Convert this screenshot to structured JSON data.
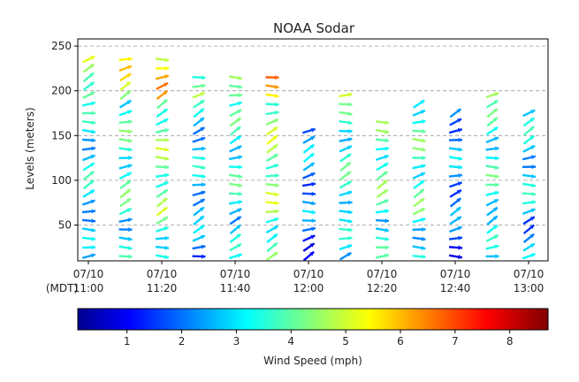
{
  "chart_data": {
    "type": "scatter",
    "subtype": "wind-barb-quiver",
    "title": "NOAA Sodar",
    "ylabel": "Levels (meters)",
    "ylim": [
      10,
      258
    ],
    "yticks": [
      50,
      100,
      150,
      200,
      250
    ],
    "xlim": [
      "07/10 11:00 MDT",
      "07/10 13:00 MDT"
    ],
    "xtick_prefix_label": "(MDT)",
    "xticks": [
      {
        "date": "07/10",
        "time": "11:00"
      },
      {
        "date": "07/10",
        "time": "11:20"
      },
      {
        "date": "07/10",
        "time": "11:40"
      },
      {
        "date": "07/10",
        "time": "12:00"
      },
      {
        "date": "07/10",
        "time": "12:20"
      },
      {
        "date": "07/10",
        "time": "12:40"
      },
      {
        "date": "07/10",
        "time": "13:00"
      }
    ],
    "grid": "horizontal dashed",
    "colorbar": {
      "label": "Wind Speed (mph)",
      "range": [
        0.1,
        8.7
      ],
      "ticks": [
        1,
        2,
        3,
        4,
        5,
        6,
        7,
        8
      ],
      "colormap": "jet"
    },
    "columns": [
      {
        "time": "11:00",
        "top": 235,
        "speed": 3.0
      },
      {
        "time": "11:10",
        "top": 235,
        "speed": 3.6
      },
      {
        "time": "11:20",
        "top": 235,
        "speed": 4.2
      },
      {
        "time": "11:30",
        "top": 215,
        "speed": 2.8
      },
      {
        "time": "11:40",
        "top": 215,
        "speed": 3.4
      },
      {
        "time": "11:50",
        "top": 215,
        "speed": 4.4
      },
      {
        "time": "12:00",
        "top": 160,
        "speed": 2.3
      },
      {
        "time": "12:10",
        "top": 195,
        "speed": 3.4
      },
      {
        "time": "12:20",
        "top": 170,
        "speed": 3.8
      },
      {
        "time": "12:30",
        "top": 190,
        "speed": 3.7
      },
      {
        "time": "12:40",
        "top": 180,
        "speed": 2.3
      },
      {
        "time": "12:50",
        "top": 195,
        "speed": 3.4
      },
      {
        "time": "13:00",
        "top": 180,
        "speed": 2.9
      }
    ]
  }
}
